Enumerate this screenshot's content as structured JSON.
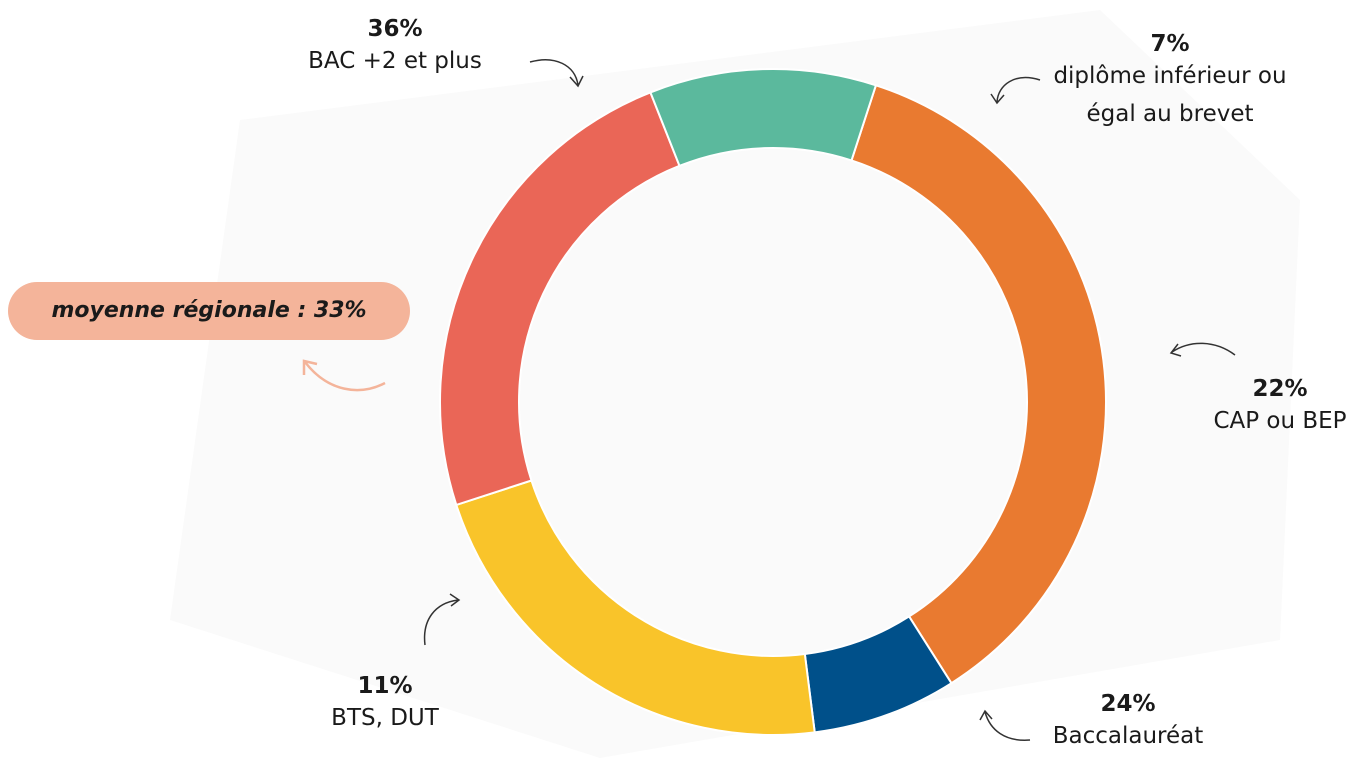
{
  "chart_data": {
    "type": "donut",
    "categories": [
      "BAC +2 et plus",
      "diplôme inférieur ou égal au brevet",
      "CAP ou BEP",
      "Baccalauréat",
      "BTS, DUT"
    ],
    "values": [
      36,
      7,
      22,
      24,
      11
    ],
    "value_labels": [
      "36%",
      "7%",
      "22%",
      "24%",
      "11%"
    ],
    "colors": [
      "#e97a30",
      "#00508a",
      "#f9c42a",
      "#ea6657",
      "#5bb99d"
    ],
    "annotation": "moyenne régionale : 33%"
  }
}
